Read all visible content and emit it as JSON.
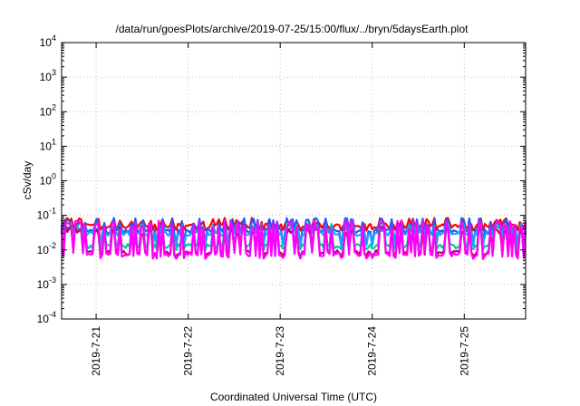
{
  "chart_data": {
    "type": "line",
    "title": "/data/run/goesPlots/archive/2019-07-25/15:00/flux/../bryn/5daysEarth.plot",
    "xlabel": "Coordinated Universal Time (UTC)",
    "ylabel": "cSv/day",
    "yscale": "log",
    "ylim": [
      0.0001,
      10000
    ],
    "y_ticks": [
      {
        "base": "10",
        "exp": "-4",
        "value": 0.0001
      },
      {
        "base": "10",
        "exp": "-3",
        "value": 0.001
      },
      {
        "base": "10",
        "exp": "-2",
        "value": 0.01
      },
      {
        "base": "10",
        "exp": "-1",
        "value": 0.1
      },
      {
        "base": "10",
        "exp": "0",
        "value": 1
      },
      {
        "base": "10",
        "exp": "1",
        "value": 10
      },
      {
        "base": "10",
        "exp": "2",
        "value": 100
      },
      {
        "base": "10",
        "exp": "3",
        "value": 1000
      },
      {
        "base": "10",
        "exp": "4",
        "value": 10000
      }
    ],
    "xlim": [
      "2019-07-20 15:00",
      "2019-07-25 16:00"
    ],
    "x_ticks": [
      {
        "label": "2019-7-21",
        "value": "2019-07-21 00:00"
      },
      {
        "label": "2019-7-22",
        "value": "2019-07-22 00:00"
      },
      {
        "label": "2019-7-23",
        "value": "2019-07-23 00:00"
      },
      {
        "label": "2019-7-24",
        "value": "2019-07-24 00:00"
      },
      {
        "label": "2019-7-25",
        "value": "2019-07-25 00:00"
      }
    ],
    "grid": true,
    "series": [
      {
        "color": "#ff0000",
        "base": 0.05,
        "spike_high": 0.085,
        "dip_low": 0.04,
        "description_level": "top"
      },
      {
        "color": "#1e5cff",
        "base": 0.035,
        "spike_high": 0.085,
        "dip_low": 0.015,
        "description_level": "second"
      },
      {
        "color": "#1aa0ff",
        "base": 0.03,
        "spike_high": 0.06,
        "dip_low": 0.014,
        "description_level": "third"
      },
      {
        "color": "#00c8a0",
        "base": 0.013,
        "spike_high": 0.06,
        "dip_low": 0.011,
        "description_level": "fourth"
      },
      {
        "color": "#c00070",
        "base": 0.0085,
        "spike_high": 0.05,
        "dip_low": 0.007,
        "description_level": "fifth"
      },
      {
        "color": "#ff00ff",
        "base": 0.0075,
        "spike_high": 0.07,
        "dip_low": 0.006,
        "description_level": "bottom"
      }
    ]
  }
}
